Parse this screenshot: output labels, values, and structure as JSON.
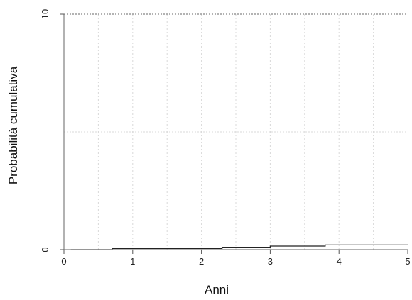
{
  "chart_data": {
    "type": "line",
    "xlabel": "Anni",
    "ylabel": "Probabilità cumulativa",
    "xlim": [
      0,
      5
    ],
    "ylim": [
      0,
      10
    ],
    "x_ticks": [
      "0",
      "1",
      "2",
      "3",
      "4",
      "5"
    ],
    "y_ticks": [
      "0",
      "10"
    ],
    "grid": true,
    "series": [
      {
        "values": [
          [
            0.1,
            0.0
          ],
          [
            0.7,
            0.0
          ],
          [
            0.7,
            0.05
          ],
          [
            2.3,
            0.05
          ],
          [
            2.3,
            0.1
          ],
          [
            3.0,
            0.1
          ],
          [
            3.0,
            0.15
          ],
          [
            3.8,
            0.15
          ],
          [
            3.8,
            0.2
          ],
          [
            5.0,
            0.2
          ]
        ],
        "color": "#222222"
      },
      {
        "values": [
          [
            0.1,
            0.0
          ],
          [
            5.0,
            0.0
          ]
        ],
        "color": "#444444"
      }
    ]
  }
}
